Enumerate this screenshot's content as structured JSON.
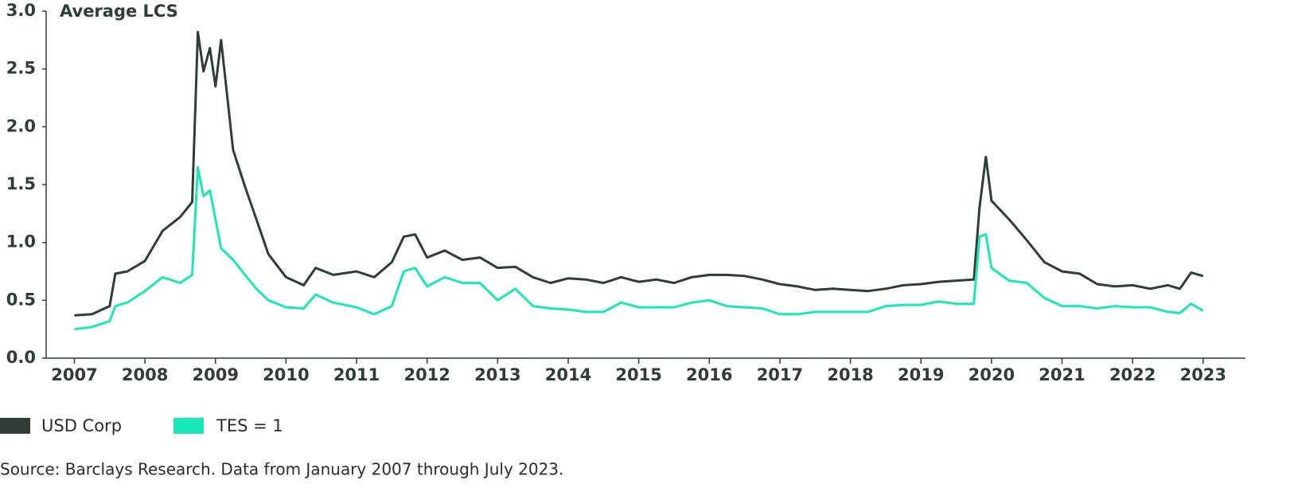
{
  "chart_data": {
    "type": "line",
    "title": "Average LCS",
    "source": "Source: Barclays Research. Data from January 2007 through July 2023.",
    "x": [
      2007,
      2007.25,
      2007.5,
      2007.58,
      2007.75,
      2008,
      2008.25,
      2008.5,
      2008.67,
      2008.75,
      2008.83,
      2008.92,
      2009,
      2009.08,
      2009.25,
      2009.42,
      2009.58,
      2009.75,
      2010,
      2010.25,
      2010.42,
      2010.67,
      2011,
      2011.25,
      2011.5,
      2011.67,
      2011.83,
      2012,
      2012.25,
      2012.5,
      2012.75,
      2013,
      2013.25,
      2013.5,
      2013.75,
      2014,
      2014.25,
      2014.5,
      2014.75,
      2015,
      2015.25,
      2015.5,
      2015.75,
      2016,
      2016.25,
      2016.5,
      2016.75,
      2017,
      2017.25,
      2017.5,
      2017.75,
      2018,
      2018.25,
      2018.5,
      2018.75,
      2019,
      2019.25,
      2019.5,
      2019.75,
      2019.83,
      2019.92,
      2020,
      2020.25,
      2020.5,
      2020.75,
      2021,
      2021.25,
      2021.5,
      2021.75,
      2022,
      2022.25,
      2022.5,
      2022.67,
      2022.83,
      2023
    ],
    "series": [
      {
        "name": "USD Corp",
        "color": "#2f3d36",
        "values": [
          0.37,
          0.38,
          0.45,
          0.73,
          0.75,
          0.84,
          1.1,
          1.22,
          1.35,
          2.82,
          2.48,
          2.68,
          2.35,
          2.75,
          1.8,
          1.48,
          1.2,
          0.9,
          0.7,
          0.63,
          0.78,
          0.72,
          0.75,
          0.7,
          0.83,
          1.05,
          1.07,
          0.87,
          0.93,
          0.85,
          0.87,
          0.78,
          0.79,
          0.7,
          0.65,
          0.69,
          0.68,
          0.65,
          0.7,
          0.66,
          0.68,
          0.65,
          0.7,
          0.72,
          0.72,
          0.71,
          0.68,
          0.64,
          0.62,
          0.59,
          0.6,
          0.59,
          0.58,
          0.6,
          0.63,
          0.64,
          0.66,
          0.67,
          0.68,
          1.3,
          1.74,
          1.36,
          1.2,
          1.02,
          0.83,
          0.75,
          0.73,
          0.64,
          0.62,
          0.63,
          0.6,
          0.63,
          0.6,
          0.74,
          0.71
        ]
      },
      {
        "name": "TES = 1",
        "color": "#19e8b6",
        "values": [
          0.25,
          0.27,
          0.32,
          0.45,
          0.48,
          0.58,
          0.7,
          0.65,
          0.72,
          1.65,
          1.4,
          1.45,
          1.2,
          0.95,
          0.85,
          0.72,
          0.6,
          0.5,
          0.44,
          0.43,
          0.55,
          0.48,
          0.44,
          0.38,
          0.45,
          0.75,
          0.78,
          0.62,
          0.7,
          0.65,
          0.65,
          0.5,
          0.6,
          0.45,
          0.43,
          0.42,
          0.4,
          0.4,
          0.48,
          0.44,
          0.44,
          0.44,
          0.48,
          0.5,
          0.45,
          0.44,
          0.43,
          0.38,
          0.38,
          0.4,
          0.4,
          0.4,
          0.4,
          0.45,
          0.46,
          0.46,
          0.49,
          0.47,
          0.47,
          1.05,
          1.07,
          0.78,
          0.67,
          0.65,
          0.52,
          0.45,
          0.45,
          0.43,
          0.45,
          0.44,
          0.44,
          0.4,
          0.39,
          0.47,
          0.41
        ]
      }
    ],
    "xlim": [
      2006.6,
      2023.6
    ],
    "xticks": [
      2007,
      2008,
      2009,
      2010,
      2011,
      2012,
      2013,
      2014,
      2015,
      2016,
      2017,
      2018,
      2019,
      2020,
      2021,
      2022,
      2023
    ],
    "ylim": [
      0,
      3
    ],
    "yticks": [
      {
        "value": 0,
        "label": "0.0"
      },
      {
        "value": 0.5,
        "label": "0.5"
      },
      {
        "value": 1,
        "label": "1.0"
      },
      {
        "value": 1.5,
        "label": "1.5"
      },
      {
        "value": 2,
        "label": "2.0"
      },
      {
        "value": 2.5,
        "label": "2.5"
      },
      {
        "value": 3,
        "label": "3.0"
      }
    ]
  }
}
